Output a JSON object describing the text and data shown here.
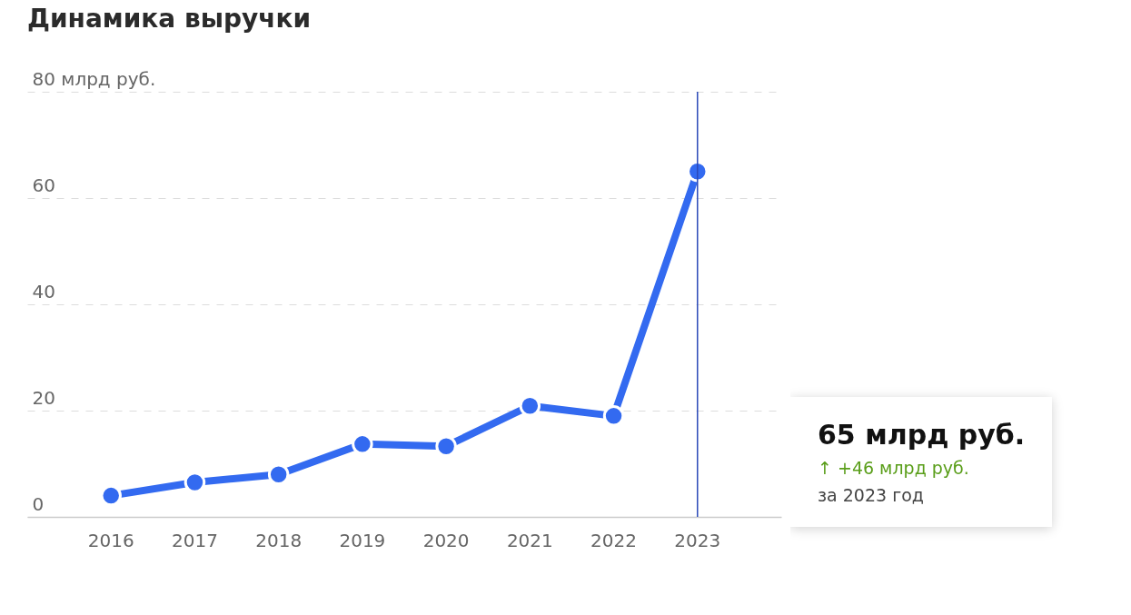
{
  "chart_data": {
    "type": "line",
    "title": "Динамика выручки",
    "categories": [
      "2016",
      "2017",
      "2018",
      "2019",
      "2020",
      "2021",
      "2022",
      "2023"
    ],
    "series": [
      {
        "color": "#336af0",
        "values": [
          4,
          6.5,
          8,
          13.7,
          13.3,
          20.9,
          19,
          65
        ]
      }
    ],
    "ylim": [
      0,
      80
    ],
    "yticks": [
      0,
      20,
      40,
      60,
      {
        "value": 80,
        "label": "80 млрд руб."
      }
    ],
    "grid": "y",
    "marker": "circle",
    "line_style": "solid",
    "legend": false,
    "ref_lines": [
      {
        "axis": "x",
        "value": "2023",
        "color": "#2a48b8"
      }
    ],
    "annotations": [
      "65 млрд руб.",
      "↑ +46 млрд руб.",
      "за 2023 год"
    ]
  }
}
